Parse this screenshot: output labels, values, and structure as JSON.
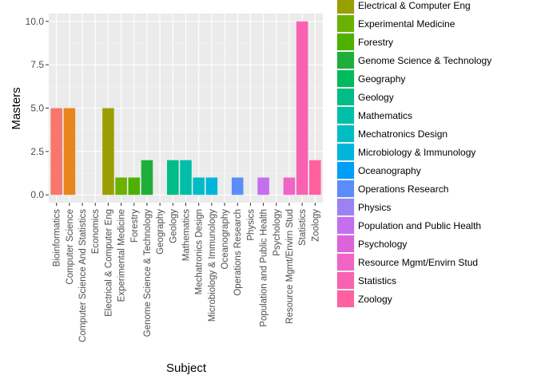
{
  "chart_data": {
    "type": "bar",
    "title": "",
    "xlabel": "Subject",
    "ylabel": "Masters",
    "ylim": [
      -0.45,
      10.45
    ],
    "yticks": [
      0.0,
      2.5,
      5.0,
      7.5,
      10.0
    ],
    "ytick_labels": [
      "0.0",
      "2.5",
      "5.0",
      "7.5",
      "10.0"
    ],
    "grid": true,
    "legend_position": "right",
    "categories": [
      "Bioinformatics",
      "Computer Science",
      "Computer Science And Statistics",
      "Economics",
      "Electrical & Computer Eng",
      "Experimental Medicine",
      "Forestry",
      "Genome Science & Technology",
      "Geography",
      "Geology",
      "Mathematics",
      "Mechatronics Design",
      "Microbiology & Immunology",
      "Oceanography",
      "Operations Research",
      "Physics",
      "Population and Public Health",
      "Psychology",
      "Resource Mgmt/Envirn Stud",
      "Statistics",
      "Zoology"
    ],
    "values": [
      5,
      5,
      0,
      0,
      5,
      1,
      1,
      2,
      0,
      2,
      2,
      1,
      1,
      0,
      1,
      0,
      1,
      0,
      1,
      10,
      2
    ],
    "colors": [
      "#F8766D",
      "#E7851E",
      "#D09400",
      "#B2A100",
      "#999F00",
      "#6BB100",
      "#4FB000",
      "#1EAF3A",
      "#00BA5C",
      "#00BC87",
      "#00BFA8",
      "#00BDC4",
      "#00B5DB",
      "#009EF6",
      "#5C8CF9",
      "#9B82F3",
      "#C46FF0",
      "#DE62DB",
      "#F064C7",
      "#F962B0",
      "#FF61A0"
    ],
    "legend": {
      "entries": [
        {
          "label": "Electrical & Computer Eng",
          "color": "#999F00"
        },
        {
          "label": "Experimental Medicine",
          "color": "#6BB100"
        },
        {
          "label": "Forestry",
          "color": "#4FB000"
        },
        {
          "label": "Genome Science & Technology",
          "color": "#1EAF3A"
        },
        {
          "label": "Geography",
          "color": "#00BA5C"
        },
        {
          "label": "Geology",
          "color": "#00BC87"
        },
        {
          "label": "Mathematics",
          "color": "#00BFA8"
        },
        {
          "label": "Mechatronics Design",
          "color": "#00BDC4"
        },
        {
          "label": "Microbiology & Immunology",
          "color": "#00B5DB"
        },
        {
          "label": "Oceanography",
          "color": "#009EF6"
        },
        {
          "label": "Operations Research",
          "color": "#5C8CF9"
        },
        {
          "label": "Physics",
          "color": "#9B82F3"
        },
        {
          "label": "Population and Public Health",
          "color": "#C46FF0"
        },
        {
          "label": "Psychology",
          "color": "#DE62DB"
        },
        {
          "label": "Resource Mgmt/Envirn Stud",
          "color": "#F064C7"
        },
        {
          "label": "Statistics",
          "color": "#F962B0"
        },
        {
          "label": "Zoology",
          "color": "#FF61A0"
        }
      ]
    }
  }
}
